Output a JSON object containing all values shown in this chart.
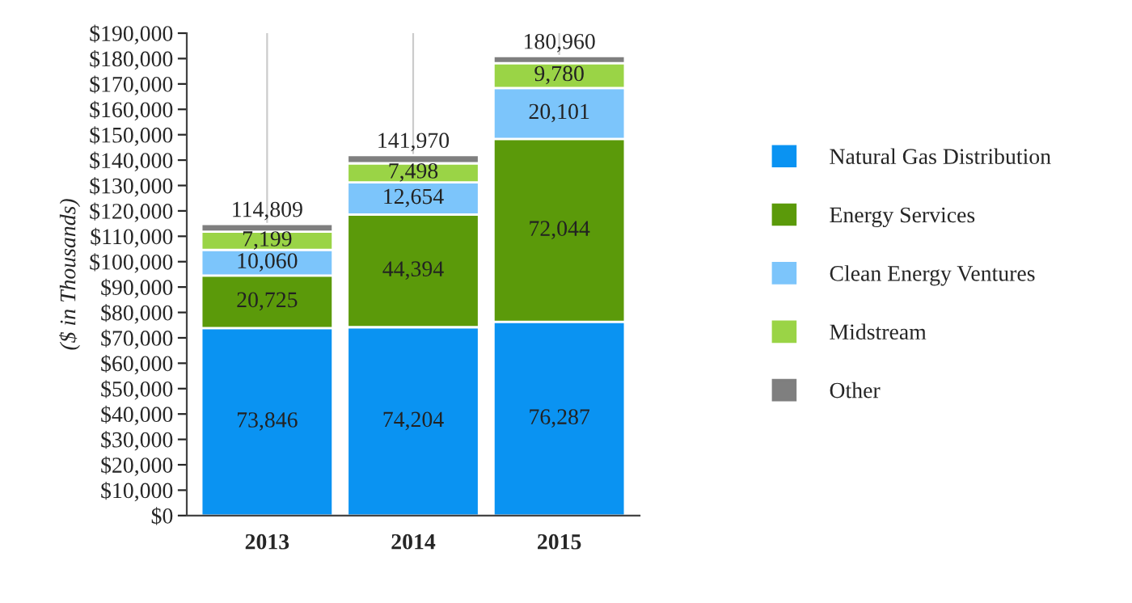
{
  "chart_data": {
    "type": "bar",
    "stacked": true,
    "ylabel": "($ in Thousands)",
    "categories": [
      "2013",
      "2014",
      "2015"
    ],
    "series": [
      {
        "name": "Natural Gas Distribution",
        "color": "#0a93f2",
        "values": [
          73846,
          74204,
          76287
        ],
        "value_labels": [
          "73,846",
          "74,204",
          "76,287"
        ]
      },
      {
        "name": "Energy Services",
        "color": "#5b9a0a",
        "values": [
          20725,
          44394,
          72044
        ],
        "value_labels": [
          "20,725",
          "44,394",
          "72,044"
        ]
      },
      {
        "name": "Clean Energy Ventures",
        "color": "#7cc5fb",
        "values": [
          10060,
          12654,
          20101
        ],
        "value_labels": [
          "10,060",
          "12,654",
          "20,101"
        ]
      },
      {
        "name": "Midstream",
        "color": "#9ad446",
        "values": [
          7199,
          7498,
          9780
        ],
        "value_labels": [
          "7,199",
          "7,498",
          "9,780"
        ]
      },
      {
        "name": "Other",
        "color": "#7f7f7f",
        "values": [
          2979,
          3220,
          2748
        ],
        "value_labels": [
          null,
          null,
          null
        ]
      }
    ],
    "totals": [
      "114,809",
      "141,970",
      "180,960"
    ],
    "ylim": [
      0,
      190000
    ],
    "yticks": [
      {
        "value": 0,
        "label": "$0"
      },
      {
        "value": 10000,
        "label": "$10,000"
      },
      {
        "value": 20000,
        "label": "$20,000"
      },
      {
        "value": 30000,
        "label": "$30,000"
      },
      {
        "value": 40000,
        "label": "$40,000"
      },
      {
        "value": 50000,
        "label": "$50,000"
      },
      {
        "value": 60000,
        "label": "$60,000"
      },
      {
        "value": 70000,
        "label": "$70,000"
      },
      {
        "value": 80000,
        "label": "$80,000"
      },
      {
        "value": 90000,
        "label": "$90,000"
      },
      {
        "value": 100000,
        "label": "$100,000"
      },
      {
        "value": 110000,
        "label": "$110,000"
      },
      {
        "value": 120000,
        "label": "$120,000"
      },
      {
        "value": 130000,
        "label": "$130,000"
      },
      {
        "value": 140000,
        "label": "$140,000"
      },
      {
        "value": 150000,
        "label": "$150,000"
      },
      {
        "value": 160000,
        "label": "$160,000"
      },
      {
        "value": 170000,
        "label": "$170,000"
      },
      {
        "value": 180000,
        "label": "$180,000"
      },
      {
        "value": 190000,
        "label": "$190,000"
      }
    ],
    "grid": "x",
    "legend": "right"
  }
}
